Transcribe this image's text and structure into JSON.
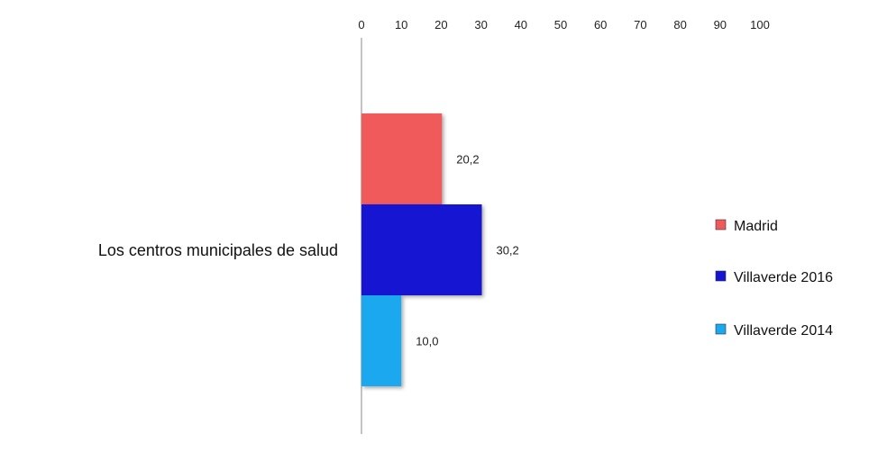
{
  "chart_data": {
    "type": "bar",
    "orientation": "horizontal",
    "title": "",
    "xlabel": "",
    "ylabel": "",
    "xlim": [
      0,
      100
    ],
    "x_ticks": [
      0,
      10,
      20,
      30,
      40,
      50,
      60,
      70,
      80,
      90,
      100
    ],
    "x_axis_position": "top",
    "grid": false,
    "legend_position": "right",
    "categories": [
      "Los  centros municipales de salud"
    ],
    "series": [
      {
        "name": "Madrid",
        "values": [
          20.2
        ],
        "value_labels": [
          "20,2"
        ],
        "color": "#F05A5A"
      },
      {
        "name": "Villaverde 2016",
        "values": [
          30.2
        ],
        "value_labels": [
          "30,2"
        ],
        "color": "#1414D2"
      },
      {
        "name": "Villaverde 2014",
        "values": [
          10.0
        ],
        "value_labels": [
          "10,0"
        ],
        "color": "#1AA8EE"
      }
    ]
  }
}
